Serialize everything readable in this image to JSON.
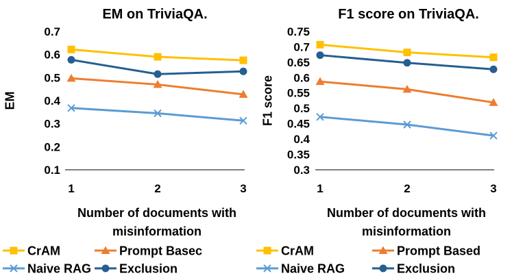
{
  "chart_data": [
    {
      "type": "line",
      "title": "EM on TriviaQA.",
      "xlabel": "Number of documents with misinformation",
      "xlabel_lines": [
        "Number of documents with",
        "misinformation"
      ],
      "ylabel": "EM",
      "categories": [
        "1",
        "2",
        "3"
      ],
      "yticks": [
        "0.1",
        "0.2",
        "0.3",
        "0.4",
        "0.5",
        "0.6",
        "0.7"
      ],
      "ylim": [
        0.1,
        0.7
      ],
      "grid": false,
      "legend_position": "bottom",
      "series": [
        {
          "name": "CrAM",
          "values": [
            0.622,
            0.59,
            0.575
          ],
          "color": "#FFC000",
          "marker": "square"
        },
        {
          "name": "Prompt Based",
          "legend_label": "Prompt Basec",
          "values": [
            0.497,
            0.47,
            0.427
          ],
          "color": "#ED7D31",
          "marker": "triangle"
        },
        {
          "name": "Naive RAG",
          "values": [
            0.368,
            0.345,
            0.313
          ],
          "color": "#5B9BD5",
          "marker": "x"
        },
        {
          "name": "Exclusion",
          "values": [
            0.577,
            0.515,
            0.527
          ],
          "color": "#255E91",
          "marker": "circle"
        }
      ]
    },
    {
      "type": "line",
      "title": "F1 score on TriviaQA.",
      "xlabel": "Number of documents with misinformation",
      "xlabel_lines": [
        "Number of documents with",
        "misinformation"
      ],
      "ylabel": "F1 score",
      "categories": [
        "1",
        "2",
        "3"
      ],
      "yticks": [
        "0.3",
        "0.35",
        "0.4",
        "0.45",
        "0.5",
        "0.55",
        "0.6",
        "0.65",
        "0.7",
        "0.75"
      ],
      "ylim": [
        0.3,
        0.75
      ],
      "grid": false,
      "legend_position": "bottom",
      "series": [
        {
          "name": "CrAM",
          "values": [
            0.707,
            0.682,
            0.666
          ],
          "color": "#FFC000",
          "marker": "square"
        },
        {
          "name": "Prompt Based",
          "legend_label": "Prompt Based",
          "values": [
            0.587,
            0.562,
            0.519
          ],
          "color": "#ED7D31",
          "marker": "triangle"
        },
        {
          "name": "Naive RAG",
          "values": [
            0.472,
            0.447,
            0.411
          ],
          "color": "#5B9BD5",
          "marker": "x"
        },
        {
          "name": "Exclusion",
          "values": [
            0.673,
            0.648,
            0.627
          ],
          "color": "#255E91",
          "marker": "circle"
        }
      ]
    }
  ]
}
